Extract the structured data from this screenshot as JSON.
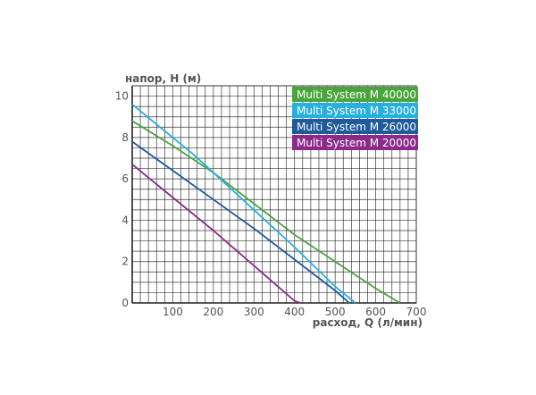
{
  "chart_data": {
    "type": "line",
    "ylabel": "напор, H (м)",
    "xlabel": "расход, Q (л/мин)",
    "xlim": [
      0,
      700
    ],
    "ylim": [
      0,
      10.5
    ],
    "x_ticks": [
      100,
      200,
      300,
      400,
      500,
      600,
      700
    ],
    "y_ticks": [
      0,
      2,
      4,
      6,
      8,
      10
    ],
    "origin_label": "0",
    "grid": true,
    "legend_placement": "top-right",
    "series": [
      {
        "name": "Multi System M 40000",
        "color": "#4aa43c",
        "points": [
          [
            0,
            8.8
          ],
          [
            100,
            7.6
          ],
          [
            200,
            6.3
          ],
          [
            300,
            4.8
          ],
          [
            400,
            3.3
          ],
          [
            500,
            2.0
          ],
          [
            600,
            0.7
          ],
          [
            660,
            0.0
          ]
        ]
      },
      {
        "name": "Multi System M 33000",
        "color": "#26b0dd",
        "points": [
          [
            0,
            9.6
          ],
          [
            100,
            8.0
          ],
          [
            150,
            7.2
          ],
          [
            200,
            6.3
          ],
          [
            300,
            4.5
          ],
          [
            400,
            2.7
          ],
          [
            500,
            0.8
          ],
          [
            550,
            0.0
          ]
        ]
      },
      {
        "name": "Multi System M 26000",
        "color": "#1e5a9c",
        "points": [
          [
            0,
            7.8
          ],
          [
            100,
            6.4
          ],
          [
            200,
            5.0
          ],
          [
            300,
            3.6
          ],
          [
            400,
            2.1
          ],
          [
            500,
            0.6
          ],
          [
            535,
            0.0
          ]
        ]
      },
      {
        "name": "Multi System M 20000",
        "color": "#8b2a8b",
        "points": [
          [
            0,
            6.7
          ],
          [
            100,
            5.1
          ],
          [
            200,
            3.5
          ],
          [
            300,
            1.8
          ],
          [
            400,
            0.1
          ],
          [
            415,
            0.0
          ]
        ]
      }
    ]
  }
}
